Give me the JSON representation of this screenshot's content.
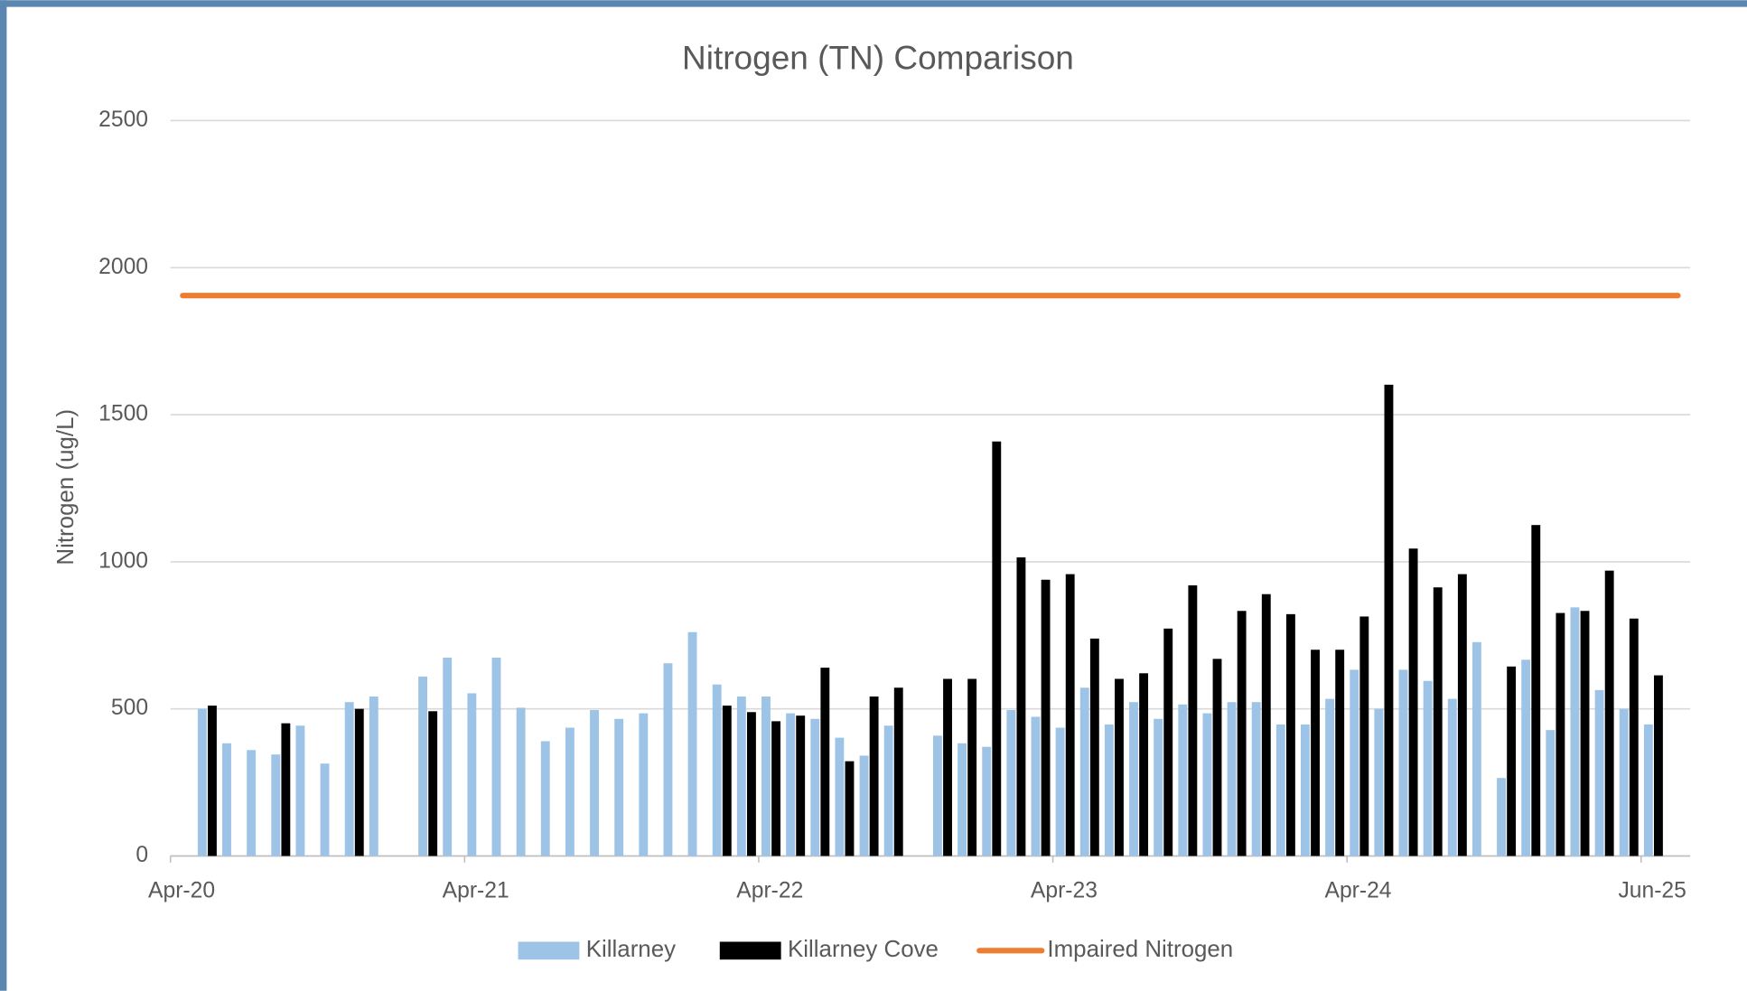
{
  "chart_data": {
    "type": "bar",
    "title": "Nitrogen (TN) Comparison",
    "y_label": "Nitrogen (ug/L)",
    "categories": [
      "Apr-20",
      null,
      null,
      null,
      null,
      null,
      null,
      null,
      null,
      null,
      null,
      null,
      "Apr-21",
      null,
      null,
      null,
      null,
      null,
      null,
      null,
      null,
      null,
      null,
      null,
      "Apr-22",
      null,
      null,
      null,
      null,
      null,
      null,
      null,
      null,
      null,
      null,
      null,
      "Apr-23",
      null,
      null,
      null,
      null,
      null,
      null,
      null,
      null,
      null,
      null,
      null,
      "Apr-24",
      null,
      null,
      null,
      null,
      null,
      null,
      null,
      null,
      null,
      null,
      null,
      "Jun-25",
      null
    ],
    "series": [
      {
        "name": "Killarney",
        "color": "#9dc3e6",
        "type": "bar",
        "values": [
          null,
          500,
          383,
          360,
          345,
          443,
          314,
          523,
          542,
          null,
          610,
          674,
          553,
          674,
          504,
          390,
          436,
          496,
          466,
          485,
          655,
          761,
          583,
          542,
          542,
          485,
          466,
          402,
          341,
          443,
          null,
          409,
          383,
          371,
          496,
          473,
          436,
          572,
          447,
          523,
          466,
          515,
          485,
          523,
          523,
          447,
          447,
          534,
          633,
          500,
          633,
          595,
          534,
          727,
          265,
          667,
          428,
          845,
          564,
          500,
          447,
          null
        ]
      },
      {
        "name": "Killarney Cove",
        "color": "#000000",
        "type": "bar",
        "values": [
          null,
          511,
          null,
          null,
          451,
          null,
          null,
          500,
          null,
          null,
          492,
          null,
          null,
          null,
          null,
          null,
          null,
          null,
          null,
          null,
          null,
          null,
          511,
          489,
          458,
          477,
          640,
          322,
          542,
          572,
          null,
          602,
          602,
          1409,
          1015,
          939,
          958,
          739,
          602,
          621,
          773,
          920,
          670,
          833,
          890,
          822,
          701,
          701,
          814,
          1602,
          1045,
          913,
          958,
          null,
          644,
          1125,
          826,
          833,
          970,
          807,
          614,
          null
        ]
      },
      {
        "name": "Impaired Nitrogen",
        "color": "#ed7d31",
        "type": "line",
        "values": [
          1905,
          1905,
          1905,
          1905,
          1905,
          1905,
          1905,
          1905,
          1905,
          1905,
          1905,
          1905,
          1905,
          1905,
          1905,
          1905,
          1905,
          1905,
          1905,
          1905,
          1905,
          1905,
          1905,
          1905,
          1905,
          1905,
          1905,
          1905,
          1905,
          1905,
          1905,
          1905,
          1905,
          1905,
          1905,
          1905,
          1905,
          1905,
          1905,
          1905,
          1905,
          1905,
          1905,
          1905,
          1905,
          1905,
          1905,
          1905,
          1905,
          1905,
          1905,
          1905,
          1905,
          1905,
          1905,
          1905,
          1905,
          1905,
          1905,
          1905,
          1905,
          1905
        ]
      }
    ],
    "ylim": [
      0,
      2500
    ],
    "yticks": [
      0,
      500,
      1000,
      1500,
      2000,
      2500
    ],
    "grid": true,
    "legend": "bottom"
  }
}
